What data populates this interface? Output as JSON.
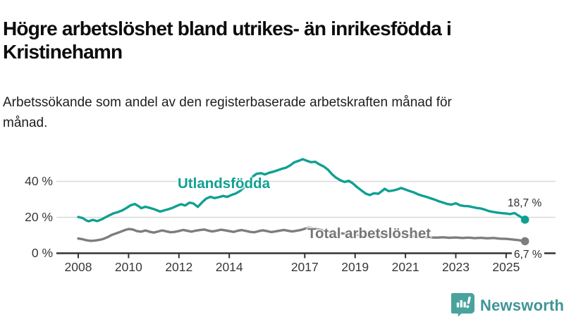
{
  "header": {
    "title": "Högre arbetslöshet bland utrikes- än inrikesfödda i Kristinehamn",
    "subtitle": "Arbetssökande som andel av den registerbaserade arbetskraften månad för månad."
  },
  "branding": {
    "logo_text": "Newsworthy",
    "logo_icon": "newsworthy-chart-bubble-icon",
    "icon_color": "#4AA29D",
    "wordmark_color": "#3E9596"
  },
  "chart_data": {
    "type": "line",
    "title": "Högre arbetslöshet bland utrikes- än inrikesfödda i Kristinehamn",
    "subtitle": "Arbetssökande som andel av den registerbaserade arbetskraften månad för månad.",
    "grid": "horizontal-only",
    "colors": {
      "grid": "#d9d9d9",
      "axis": "#333333",
      "tick_text": "#383838"
    },
    "y_axis": {
      "unit": "%",
      "range": [
        0,
        56
      ],
      "ticks": [
        {
          "value": 40,
          "label": "40 %"
        },
        {
          "value": 20,
          "label": "20 %"
        },
        {
          "value": 0,
          "label": "0 %"
        }
      ]
    },
    "x_axis": {
      "unit": "year",
      "range": [
        2008,
        2025.75
      ],
      "ticks": [
        {
          "value": 2008,
          "label": "2008"
        },
        {
          "value": 2010,
          "label": "2010"
        },
        {
          "value": 2012,
          "label": "2012"
        },
        {
          "value": 2014,
          "label": "2014"
        },
        {
          "value": 2017,
          "label": "2017"
        },
        {
          "value": 2019,
          "label": "2019"
        },
        {
          "value": 2021,
          "label": "2021"
        },
        {
          "value": 2023,
          "label": "2023"
        },
        {
          "value": 2025,
          "label": "2025"
        }
      ]
    },
    "series": [
      {
        "name": "Utlandsfödda",
        "color": "#0FA092",
        "end_label": "18,7 %",
        "end_value": 18.7,
        "points": [
          [
            2008.0,
            20.2
          ],
          [
            2008.17,
            19.6
          ],
          [
            2008.33,
            18.2
          ],
          [
            2008.42,
            17.8
          ],
          [
            2008.58,
            18.6
          ],
          [
            2008.75,
            17.9
          ],
          [
            2008.92,
            18.8
          ],
          [
            2009.08,
            20.0
          ],
          [
            2009.25,
            21.2
          ],
          [
            2009.42,
            22.3
          ],
          [
            2009.58,
            22.9
          ],
          [
            2009.75,
            23.9
          ],
          [
            2009.92,
            25.2
          ],
          [
            2010.08,
            26.7
          ],
          [
            2010.25,
            27.4
          ],
          [
            2010.42,
            26.0
          ],
          [
            2010.5,
            25.1
          ],
          [
            2010.67,
            25.9
          ],
          [
            2010.83,
            25.3
          ],
          [
            2011.0,
            24.6
          ],
          [
            2011.17,
            23.7
          ],
          [
            2011.25,
            23.2
          ],
          [
            2011.42,
            23.9
          ],
          [
            2011.58,
            24.5
          ],
          [
            2011.75,
            25.3
          ],
          [
            2011.92,
            26.4
          ],
          [
            2012.08,
            27.3
          ],
          [
            2012.25,
            26.6
          ],
          [
            2012.42,
            28.2
          ],
          [
            2012.58,
            27.7
          ],
          [
            2012.75,
            25.8
          ],
          [
            2012.92,
            28.3
          ],
          [
            2013.08,
            30.4
          ],
          [
            2013.25,
            31.4
          ],
          [
            2013.42,
            30.7
          ],
          [
            2013.58,
            31.2
          ],
          [
            2013.75,
            31.9
          ],
          [
            2013.92,
            31.4
          ],
          [
            2014.08,
            32.4
          ],
          [
            2014.25,
            33.2
          ],
          [
            2014.42,
            34.6
          ],
          [
            2014.58,
            36.5
          ],
          [
            2014.75,
            39.0
          ],
          [
            2014.92,
            42.5
          ],
          [
            2015.08,
            44.2
          ],
          [
            2015.25,
            44.6
          ],
          [
            2015.42,
            43.9
          ],
          [
            2015.58,
            44.8
          ],
          [
            2015.75,
            45.4
          ],
          [
            2015.92,
            46.2
          ],
          [
            2016.08,
            47.0
          ],
          [
            2016.25,
            47.6
          ],
          [
            2016.42,
            48.9
          ],
          [
            2016.58,
            50.6
          ],
          [
            2016.75,
            51.4
          ],
          [
            2016.92,
            52.4
          ],
          [
            2017.08,
            51.5
          ],
          [
            2017.25,
            50.7
          ],
          [
            2017.42,
            50.9
          ],
          [
            2017.58,
            49.5
          ],
          [
            2017.75,
            48.3
          ],
          [
            2017.92,
            46.6
          ],
          [
            2018.08,
            44.0
          ],
          [
            2018.25,
            42.0
          ],
          [
            2018.42,
            40.6
          ],
          [
            2018.58,
            39.7
          ],
          [
            2018.75,
            40.3
          ],
          [
            2018.92,
            38.8
          ],
          [
            2019.08,
            36.8
          ],
          [
            2019.25,
            35.0
          ],
          [
            2019.42,
            33.2
          ],
          [
            2019.58,
            32.4
          ],
          [
            2019.75,
            33.4
          ],
          [
            2019.92,
            33.1
          ],
          [
            2020.08,
            34.8
          ],
          [
            2020.17,
            35.9
          ],
          [
            2020.33,
            34.6
          ],
          [
            2020.5,
            34.9
          ],
          [
            2020.67,
            35.5
          ],
          [
            2020.83,
            36.3
          ],
          [
            2021.0,
            35.5
          ],
          [
            2021.17,
            34.6
          ],
          [
            2021.33,
            33.9
          ],
          [
            2021.5,
            32.8
          ],
          [
            2021.67,
            32.0
          ],
          [
            2021.83,
            31.4
          ],
          [
            2022.0,
            30.6
          ],
          [
            2022.17,
            29.8
          ],
          [
            2022.33,
            28.9
          ],
          [
            2022.5,
            28.2
          ],
          [
            2022.67,
            27.4
          ],
          [
            2022.83,
            27.1
          ],
          [
            2023.0,
            27.8
          ],
          [
            2023.17,
            26.7
          ],
          [
            2023.33,
            26.3
          ],
          [
            2023.5,
            26.2
          ],
          [
            2023.67,
            25.7
          ],
          [
            2023.83,
            25.2
          ],
          [
            2024.0,
            24.9
          ],
          [
            2024.17,
            24.2
          ],
          [
            2024.33,
            23.4
          ],
          [
            2024.5,
            23.0
          ],
          [
            2024.67,
            22.6
          ],
          [
            2024.83,
            22.3
          ],
          [
            2025.0,
            22.1
          ],
          [
            2025.17,
            21.8
          ],
          [
            2025.33,
            22.4
          ],
          [
            2025.5,
            20.9
          ],
          [
            2025.75,
            18.7
          ]
        ]
      },
      {
        "name": "Total arbetslöshet",
        "color": "#7D7D7D",
        "end_label": "6,7 %",
        "end_value": 6.7,
        "points": [
          [
            2008.0,
            8.2
          ],
          [
            2008.17,
            7.8
          ],
          [
            2008.33,
            7.2
          ],
          [
            2008.5,
            6.9
          ],
          [
            2008.67,
            7.1
          ],
          [
            2008.83,
            7.4
          ],
          [
            2009.0,
            8.0
          ],
          [
            2009.17,
            9.0
          ],
          [
            2009.33,
            10.2
          ],
          [
            2009.5,
            11.0
          ],
          [
            2009.67,
            11.9
          ],
          [
            2009.83,
            12.8
          ],
          [
            2010.0,
            13.5
          ],
          [
            2010.17,
            13.2
          ],
          [
            2010.33,
            12.3
          ],
          [
            2010.5,
            12.0
          ],
          [
            2010.67,
            12.7
          ],
          [
            2010.83,
            12.0
          ],
          [
            2011.0,
            11.5
          ],
          [
            2011.17,
            12.1
          ],
          [
            2011.33,
            12.7
          ],
          [
            2011.5,
            12.2
          ],
          [
            2011.67,
            11.7
          ],
          [
            2011.83,
            11.9
          ],
          [
            2012.0,
            12.4
          ],
          [
            2012.17,
            13.0
          ],
          [
            2012.33,
            12.5
          ],
          [
            2012.5,
            12.0
          ],
          [
            2012.67,
            12.6
          ],
          [
            2012.83,
            12.9
          ],
          [
            2013.0,
            13.2
          ],
          [
            2013.17,
            12.6
          ],
          [
            2013.33,
            12.1
          ],
          [
            2013.5,
            12.6
          ],
          [
            2013.67,
            13.1
          ],
          [
            2013.83,
            12.8
          ],
          [
            2014.0,
            12.3
          ],
          [
            2014.17,
            11.9
          ],
          [
            2014.33,
            12.5
          ],
          [
            2014.5,
            12.9
          ],
          [
            2014.67,
            12.4
          ],
          [
            2014.83,
            11.9
          ],
          [
            2015.0,
            11.7
          ],
          [
            2015.17,
            12.3
          ],
          [
            2015.33,
            12.8
          ],
          [
            2015.5,
            12.3
          ],
          [
            2015.67,
            11.8
          ],
          [
            2015.83,
            12.1
          ],
          [
            2016.0,
            12.6
          ],
          [
            2016.17,
            13.0
          ],
          [
            2016.33,
            12.5
          ],
          [
            2016.5,
            12.1
          ],
          [
            2016.67,
            12.5
          ],
          [
            2016.83,
            12.9
          ],
          [
            2017.0,
            13.6
          ],
          [
            2017.17,
            14.3
          ],
          [
            2017.33,
            14.0
          ],
          [
            2017.5,
            13.4
          ],
          [
            2017.67,
            12.9
          ],
          [
            2017.83,
            12.3
          ],
          [
            2018.0,
            11.8
          ],
          [
            2018.25,
            11.3
          ],
          [
            2018.5,
            11.0
          ],
          [
            2018.75,
            10.7
          ],
          [
            2019.0,
            10.3
          ],
          [
            2019.25,
            9.9
          ],
          [
            2019.5,
            9.6
          ],
          [
            2019.75,
            9.5
          ],
          [
            2020.0,
            9.8
          ],
          [
            2020.25,
            10.8
          ],
          [
            2020.5,
            10.6
          ],
          [
            2020.75,
            10.3
          ],
          [
            2021.0,
            10.0
          ],
          [
            2021.25,
            9.6
          ],
          [
            2021.5,
            9.3
          ],
          [
            2021.75,
            9.0
          ],
          [
            2022.0,
            8.8
          ],
          [
            2022.25,
            8.7
          ],
          [
            2022.5,
            8.9
          ],
          [
            2022.75,
            8.6
          ],
          [
            2023.0,
            8.8
          ],
          [
            2023.25,
            8.5
          ],
          [
            2023.5,
            8.7
          ],
          [
            2023.75,
            8.4
          ],
          [
            2024.0,
            8.6
          ],
          [
            2024.25,
            8.3
          ],
          [
            2024.5,
            8.5
          ],
          [
            2024.75,
            8.1
          ],
          [
            2025.0,
            8.0
          ],
          [
            2025.25,
            7.7
          ],
          [
            2025.5,
            7.3
          ],
          [
            2025.75,
            6.7
          ]
        ]
      }
    ]
  }
}
